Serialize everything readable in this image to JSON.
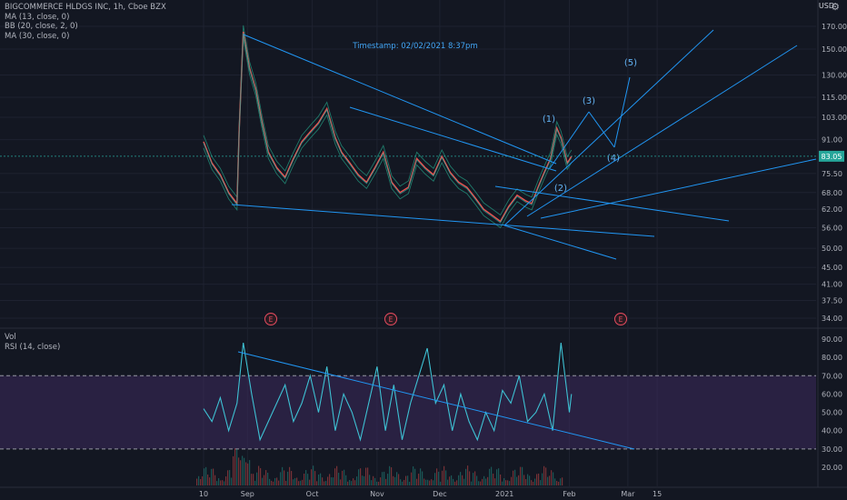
{
  "symbol_line": "BIGCOMMERCE HLDGS INC, 1h, Cboe BZX",
  "indicators": [
    "MA (13, close, 0)",
    "BB (20, close, 2, 0)",
    "MA (30, close, 0)"
  ],
  "lower_legend": [
    "Vol",
    "RSI (14, close)"
  ],
  "currency": "USD",
  "annotation_timestamp": "Timestamp: 02/02/2021 8:37pm",
  "last_price": "83.05",
  "colors": {
    "background": "#131722",
    "grid": "#1e2230",
    "text": "#b2b5be",
    "trendline": "#2196f3",
    "candle_up": "#26a69a",
    "candle_down": "#ef5350",
    "rsi_line": "#3ec1d3",
    "rsi_band": "#3d2a5c",
    "earnings": "#e84c5f",
    "price_badge": "#26a69a"
  },
  "chart_data": [
    {
      "type": "line",
      "title": "BIGCOMMERCE HLDGS INC, 1h, Cboe BZX",
      "price_scale": "log",
      "x_ticks": [
        "10",
        "Sep",
        "Oct",
        "Nov",
        "Dec",
        "2021",
        "Feb",
        "Mar",
        "15"
      ],
      "y_ticks": [
        "170.00",
        "150.00",
        "130.00",
        "115.00",
        "103.00",
        "91.00",
        "83.05",
        "75.50",
        "68.00",
        "62.00",
        "56.00",
        "50.00",
        "45.00",
        "41.00",
        "37.50",
        "34.00"
      ],
      "series": [
        {
          "name": "Price",
          "x": [
            "Aug 10",
            "Aug 14",
            "Aug 18",
            "Aug 22",
            "Aug 26",
            "Aug 27",
            "Aug 29",
            "Sep 1",
            "Sep 4",
            "Sep 7",
            "Sep 10",
            "Sep 14",
            "Sep 18",
            "Sep 22",
            "Sep 26",
            "Sep 30",
            "Oct 4",
            "Oct 8",
            "Oct 12",
            "Oct 15",
            "Oct 19",
            "Oct 23",
            "Oct 27",
            "Oct 31",
            "Nov 4",
            "Nov 8",
            "Nov 12",
            "Nov 16",
            "Nov 20",
            "Nov 24",
            "Nov 28",
            "Dec 2",
            "Dec 6",
            "Dec 10",
            "Dec 14",
            "Dec 18",
            "Dec 22",
            "Dec 26",
            "Dec 30",
            "Jan 3",
            "Jan 7",
            "Jan 11",
            "Jan 14",
            "Jan 17",
            "Jan 20",
            "Jan 23",
            "Jan 26",
            "Jan 28",
            "Jan 31",
            "Feb 2"
          ],
          "y": [
            90,
            80,
            75,
            68,
            64,
            95,
            165,
            135,
            120,
            100,
            85,
            78,
            74,
            82,
            90,
            95,
            100,
            108,
            92,
            85,
            80,
            75,
            72,
            78,
            85,
            72,
            68,
            70,
            82,
            78,
            75,
            83,
            76,
            72,
            70,
            66,
            62,
            60,
            58,
            63,
            67,
            65,
            64,
            70,
            76,
            82,
            97,
            92,
            80,
            83
          ]
        }
      ],
      "wave_labels": [
        "(1)",
        "(2)",
        "(3)",
        "(4)",
        "(5)"
      ],
      "earnings_markers": [
        "E",
        "E",
        "E"
      ]
    },
    {
      "type": "line",
      "title": "RSI (14, close)",
      "y_ticks": [
        "90.00",
        "80.00",
        "70.00",
        "60.00",
        "50.00",
        "40.00",
        "30.00",
        "20.00"
      ],
      "bands": [
        30,
        70
      ],
      "series": [
        {
          "name": "RSI (14, close)",
          "x": [
            "Aug 10",
            "Aug 14",
            "Aug 18",
            "Aug 22",
            "Aug 26",
            "Aug 29",
            "Sep 2",
            "Sep 6",
            "Sep 10",
            "Sep 14",
            "Sep 18",
            "Sep 22",
            "Sep 26",
            "Sep 30",
            "Oct 4",
            "Oct 8",
            "Oct 12",
            "Oct 16",
            "Oct 20",
            "Oct 24",
            "Oct 28",
            "Nov 1",
            "Nov 5",
            "Nov 9",
            "Nov 13",
            "Nov 17",
            "Nov 21",
            "Nov 25",
            "Nov 29",
            "Dec 3",
            "Dec 7",
            "Dec 11",
            "Dec 15",
            "Dec 19",
            "Dec 23",
            "Dec 27",
            "Dec 31",
            "Jan 4",
            "Jan 8",
            "Jan 12",
            "Jan 16",
            "Jan 20",
            "Jan 24",
            "Jan 28",
            "Feb 1",
            "Feb 2"
          ],
          "y": [
            52,
            45,
            58,
            40,
            55,
            88,
            60,
            35,
            45,
            55,
            65,
            45,
            55,
            70,
            50,
            75,
            40,
            60,
            50,
            35,
            55,
            75,
            40,
            65,
            35,
            55,
            70,
            85,
            55,
            65,
            40,
            60,
            45,
            35,
            50,
            40,
            62,
            55,
            70,
            45,
            50,
            60,
            40,
            88,
            50,
            60
          ]
        }
      ]
    }
  ]
}
